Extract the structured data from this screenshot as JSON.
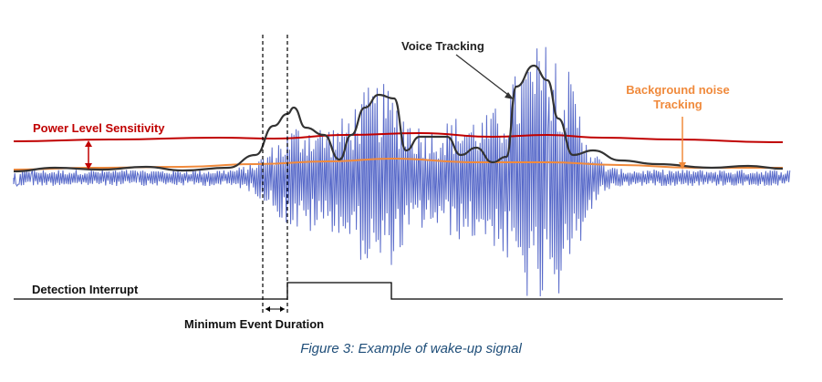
{
  "labels": {
    "voice_tracking": "Voice Tracking",
    "background_noise_line1": "Background noise",
    "background_noise_line2": "Tracking",
    "power_level_sensitivity": "Power Level Sensitivity",
    "detection_interrupt": "Detection Interrupt",
    "minimum_event_duration": "Minimum Event Duration"
  },
  "caption": "Figure 3: Example of wake-up signal",
  "colors": {
    "signal": "#3a4fc0",
    "power_level": "#c00000",
    "background_noise": "#f08a3c",
    "voice_tracking": "#333333",
    "interrupt": "#000000",
    "caption": "#1f4e79"
  }
}
